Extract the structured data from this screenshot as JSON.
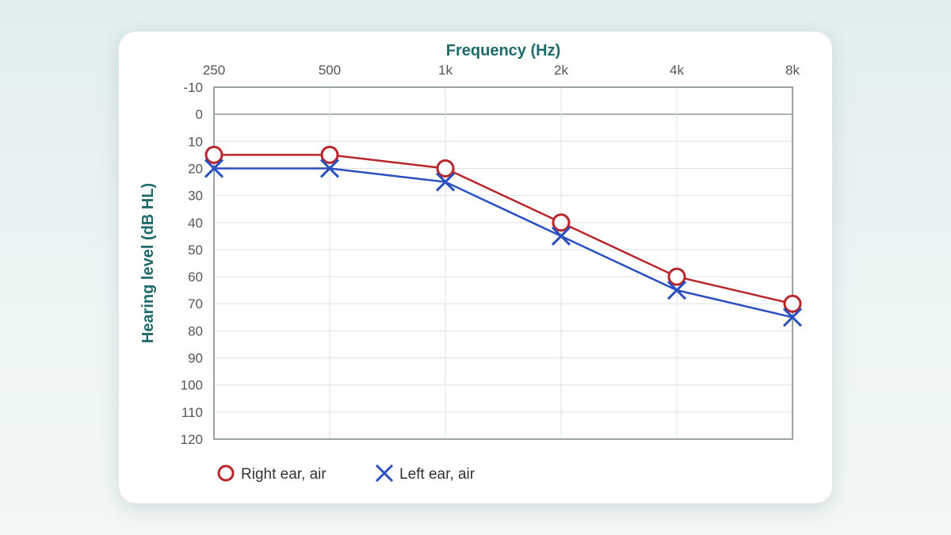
{
  "chart_data": {
    "type": "line",
    "title": "",
    "xlabel": "Frequency (Hz)",
    "ylabel": "Hearing level (dB HL)",
    "categories": [
      "250",
      "500",
      "1k",
      "2k",
      "4k",
      "8k"
    ],
    "y_ticks": [
      "-10",
      "0",
      "10",
      "20",
      "30",
      "40",
      "50",
      "60",
      "70",
      "80",
      "90",
      "100",
      "110",
      "120"
    ],
    "ylim": [
      -10,
      120
    ],
    "y_inverted": true,
    "x_axis_position": "top",
    "grid": true,
    "legend_position": "bottom-left",
    "series": [
      {
        "name": "Right ear, air",
        "marker": "circle",
        "color": "#b8262b",
        "values": [
          15,
          15,
          20,
          40,
          60,
          70
        ]
      },
      {
        "name": "Left ear, air",
        "marker": "cross",
        "color": "#2a4fbf",
        "values": [
          20,
          20,
          25,
          45,
          65,
          75
        ]
      }
    ]
  },
  "colors": {
    "axis_title": "#1f6b6b",
    "tick_label": "#555555",
    "grid": "#dde3e3",
    "frame": "#9aa4a6"
  }
}
